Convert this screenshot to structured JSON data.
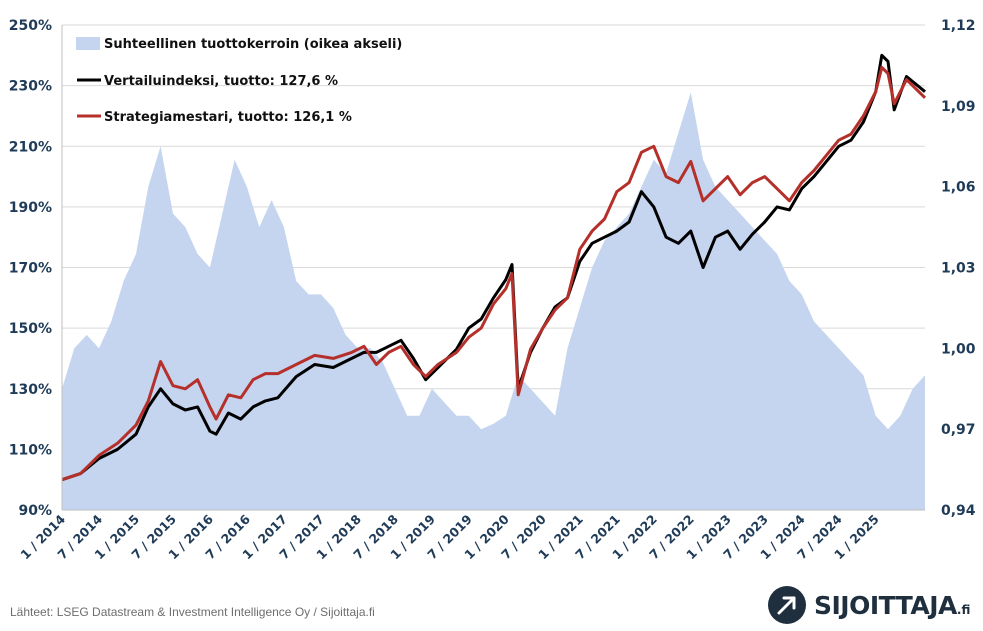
{
  "source": "Lähteet: LSEG Datastream & Investment Intelligence Oy / Sijoittaja.fi",
  "logo": {
    "name": "SIJOITTAJA",
    "suffix": ".fi"
  },
  "colors": {
    "benchmark": "#000000",
    "strategy": "#b5302a",
    "ratio": "#c5d5ef",
    "axis_text": "#1f3b57",
    "grid": "#d9d9d9"
  },
  "chart_data": {
    "type": "line",
    "x_start": "2014-01",
    "x_end": "2025-09",
    "x_ticks": [
      "1 / 2014",
      "7 / 2014",
      "1 / 2015",
      "7 / 2015",
      "1 / 2016",
      "7 / 2016",
      "1 / 2017",
      "7 / 2017",
      "1 / 2018",
      "7 / 2018",
      "1 / 2019",
      "7 / 2019",
      "1 / 2020",
      "7 / 2020",
      "1 / 2021",
      "7 / 2021",
      "1 / 2022",
      "7 / 2022",
      "1 / 2023",
      "7 / 2023",
      "1 / 2024",
      "7 / 2024",
      "1 / 2025"
    ],
    "y_left": {
      "ticks": [
        "90%",
        "110%",
        "130%",
        "150%",
        "170%",
        "190%",
        "210%",
        "230%",
        "250%"
      ],
      "range": [
        90,
        250
      ]
    },
    "y_right": {
      "ticks": [
        "0,94",
        "0,97",
        "1,00",
        "1,03",
        "1,06",
        "1,09",
        "1,12"
      ],
      "range": [
        0.94,
        1.12
      ]
    },
    "grid": "horizontal",
    "legend_position": "top-left",
    "series": [
      {
        "name": "Suhteellinen tuottokerroin (oikea akseli)",
        "type": "area",
        "axis": "right",
        "points": [
          [
            "2014-01",
            0.985
          ],
          [
            "2014-03",
            1.0
          ],
          [
            "2014-05",
            1.005
          ],
          [
            "2014-07",
            1.0
          ],
          [
            "2014-09",
            1.01
          ],
          [
            "2014-11",
            1.025
          ],
          [
            "2015-01",
            1.035
          ],
          [
            "2015-03",
            1.06
          ],
          [
            "2015-05",
            1.075
          ],
          [
            "2015-07",
            1.05
          ],
          [
            "2015-09",
            1.045
          ],
          [
            "2015-11",
            1.035
          ],
          [
            "2016-01",
            1.03
          ],
          [
            "2016-03",
            1.05
          ],
          [
            "2016-05",
            1.07
          ],
          [
            "2016-07",
            1.06
          ],
          [
            "2016-09",
            1.045
          ],
          [
            "2016-11",
            1.055
          ],
          [
            "2017-01",
            1.045
          ],
          [
            "2017-03",
            1.025
          ],
          [
            "2017-05",
            1.02
          ],
          [
            "2017-07",
            1.02
          ],
          [
            "2017-09",
            1.015
          ],
          [
            "2017-11",
            1.005
          ],
          [
            "2018-01",
            1.0
          ],
          [
            "2018-03",
            1.0
          ],
          [
            "2018-05",
            0.995
          ],
          [
            "2018-07",
            0.985
          ],
          [
            "2018-09",
            0.975
          ],
          [
            "2018-11",
            0.975
          ],
          [
            "2019-01",
            0.985
          ],
          [
            "2019-03",
            0.98
          ],
          [
            "2019-05",
            0.975
          ],
          [
            "2019-07",
            0.975
          ],
          [
            "2019-09",
            0.97
          ],
          [
            "2019-11",
            0.972
          ],
          [
            "2020-01",
            0.975
          ],
          [
            "2020-03",
            0.99
          ],
          [
            "2020-05",
            0.985
          ],
          [
            "2020-07",
            0.98
          ],
          [
            "2020-09",
            0.975
          ],
          [
            "2020-11",
            1.0
          ],
          [
            "2021-01",
            1.015
          ],
          [
            "2021-03",
            1.03
          ],
          [
            "2021-05",
            1.04
          ],
          [
            "2021-07",
            1.045
          ],
          [
            "2021-09",
            1.05
          ],
          [
            "2021-11",
            1.06
          ],
          [
            "2022-01",
            1.07
          ],
          [
            "2022-03",
            1.065
          ],
          [
            "2022-05",
            1.08
          ],
          [
            "2022-07",
            1.095
          ],
          [
            "2022-09",
            1.07
          ],
          [
            "2022-11",
            1.06
          ],
          [
            "2023-01",
            1.055
          ],
          [
            "2023-03",
            1.05
          ],
          [
            "2023-05",
            1.045
          ],
          [
            "2023-07",
            1.04
          ],
          [
            "2023-09",
            1.035
          ],
          [
            "2023-11",
            1.025
          ],
          [
            "2024-01",
            1.02
          ],
          [
            "2024-03",
            1.01
          ],
          [
            "2024-05",
            1.005
          ],
          [
            "2024-07",
            1.0
          ],
          [
            "2024-09",
            0.995
          ],
          [
            "2024-11",
            0.99
          ],
          [
            "2025-01",
            0.975
          ],
          [
            "2025-03",
            0.97
          ],
          [
            "2025-05",
            0.975
          ],
          [
            "2025-07",
            0.985
          ],
          [
            "2025-09",
            0.99
          ]
        ]
      },
      {
        "name": "Vertailuindeksi, tuotto: 127,6 %",
        "type": "line",
        "axis": "left",
        "points": [
          [
            "2014-01",
            100
          ],
          [
            "2014-04",
            102
          ],
          [
            "2014-07",
            107
          ],
          [
            "2014-10",
            110
          ],
          [
            "2015-01",
            115
          ],
          [
            "2015-03",
            124
          ],
          [
            "2015-05",
            130
          ],
          [
            "2015-07",
            125
          ],
          [
            "2015-09",
            123
          ],
          [
            "2015-11",
            124
          ],
          [
            "2016-01",
            116
          ],
          [
            "2016-02",
            115
          ],
          [
            "2016-04",
            122
          ],
          [
            "2016-06",
            120
          ],
          [
            "2016-08",
            124
          ],
          [
            "2016-10",
            126
          ],
          [
            "2016-12",
            127
          ],
          [
            "2017-03",
            134
          ],
          [
            "2017-06",
            138
          ],
          [
            "2017-09",
            137
          ],
          [
            "2017-12",
            140
          ],
          [
            "2018-02",
            142
          ],
          [
            "2018-04",
            142
          ],
          [
            "2018-06",
            144
          ],
          [
            "2018-08",
            146
          ],
          [
            "2018-10",
            140
          ],
          [
            "2018-12",
            133
          ],
          [
            "2019-02",
            137
          ],
          [
            "2019-05",
            143
          ],
          [
            "2019-07",
            150
          ],
          [
            "2019-09",
            153
          ],
          [
            "2019-11",
            160
          ],
          [
            "2020-01",
            166
          ],
          [
            "2020-02",
            171
          ],
          [
            "2020-03",
            130
          ],
          [
            "2020-05",
            142
          ],
          [
            "2020-07",
            150
          ],
          [
            "2020-09",
            157
          ],
          [
            "2020-11",
            160
          ],
          [
            "2021-01",
            172
          ],
          [
            "2021-03",
            178
          ],
          [
            "2021-05",
            180
          ],
          [
            "2021-07",
            182
          ],
          [
            "2021-09",
            185
          ],
          [
            "2021-11",
            195
          ],
          [
            "2022-01",
            190
          ],
          [
            "2022-03",
            180
          ],
          [
            "2022-05",
            178
          ],
          [
            "2022-07",
            182
          ],
          [
            "2022-09",
            170
          ],
          [
            "2022-11",
            180
          ],
          [
            "2023-01",
            182
          ],
          [
            "2023-03",
            176
          ],
          [
            "2023-05",
            181
          ],
          [
            "2023-07",
            185
          ],
          [
            "2023-09",
            190
          ],
          [
            "2023-11",
            189
          ],
          [
            "2024-01",
            196
          ],
          [
            "2024-03",
            200
          ],
          [
            "2024-05",
            205
          ],
          [
            "2024-07",
            210
          ],
          [
            "2024-09",
            212
          ],
          [
            "2024-11",
            218
          ],
          [
            "2025-01",
            228
          ],
          [
            "2025-02",
            240
          ],
          [
            "2025-03",
            238
          ],
          [
            "2025-04",
            222
          ],
          [
            "2025-06",
            233
          ],
          [
            "2025-09",
            228
          ]
        ]
      },
      {
        "name": "Strategiamestari, tuotto: 126,1 %",
        "type": "line",
        "axis": "left",
        "points": [
          [
            "2014-01",
            100
          ],
          [
            "2014-04",
            102
          ],
          [
            "2014-07",
            108
          ],
          [
            "2014-10",
            112
          ],
          [
            "2015-01",
            118
          ],
          [
            "2015-03",
            126
          ],
          [
            "2015-05",
            139
          ],
          [
            "2015-07",
            131
          ],
          [
            "2015-09",
            130
          ],
          [
            "2015-11",
            133
          ],
          [
            "2016-01",
            124
          ],
          [
            "2016-02",
            120
          ],
          [
            "2016-04",
            128
          ],
          [
            "2016-06",
            127
          ],
          [
            "2016-08",
            133
          ],
          [
            "2016-10",
            135
          ],
          [
            "2016-12",
            135
          ],
          [
            "2017-03",
            138
          ],
          [
            "2017-06",
            141
          ],
          [
            "2017-09",
            140
          ],
          [
            "2017-12",
            142
          ],
          [
            "2018-02",
            144
          ],
          [
            "2018-04",
            138
          ],
          [
            "2018-06",
            142
          ],
          [
            "2018-08",
            144
          ],
          [
            "2018-10",
            138
          ],
          [
            "2018-12",
            134
          ],
          [
            "2019-02",
            138
          ],
          [
            "2019-05",
            142
          ],
          [
            "2019-07",
            147
          ],
          [
            "2019-09",
            150
          ],
          [
            "2019-11",
            158
          ],
          [
            "2020-01",
            163
          ],
          [
            "2020-02",
            168
          ],
          [
            "2020-03",
            128
          ],
          [
            "2020-05",
            143
          ],
          [
            "2020-07",
            150
          ],
          [
            "2020-09",
            156
          ],
          [
            "2020-11",
            160
          ],
          [
            "2021-01",
            176
          ],
          [
            "2021-03",
            182
          ],
          [
            "2021-05",
            186
          ],
          [
            "2021-07",
            195
          ],
          [
            "2021-09",
            198
          ],
          [
            "2021-11",
            208
          ],
          [
            "2022-01",
            210
          ],
          [
            "2022-03",
            200
          ],
          [
            "2022-05",
            198
          ],
          [
            "2022-07",
            205
          ],
          [
            "2022-09",
            192
          ],
          [
            "2022-11",
            196
          ],
          [
            "2023-01",
            200
          ],
          [
            "2023-03",
            194
          ],
          [
            "2023-05",
            198
          ],
          [
            "2023-07",
            200
          ],
          [
            "2023-09",
            196
          ],
          [
            "2023-11",
            192
          ],
          [
            "2024-01",
            198
          ],
          [
            "2024-03",
            202
          ],
          [
            "2024-05",
            207
          ],
          [
            "2024-07",
            212
          ],
          [
            "2024-09",
            214
          ],
          [
            "2024-11",
            220
          ],
          [
            "2025-01",
            228
          ],
          [
            "2025-02",
            236
          ],
          [
            "2025-03",
            234
          ],
          [
            "2025-04",
            224
          ],
          [
            "2025-06",
            232
          ],
          [
            "2025-09",
            226
          ]
        ]
      }
    ]
  }
}
